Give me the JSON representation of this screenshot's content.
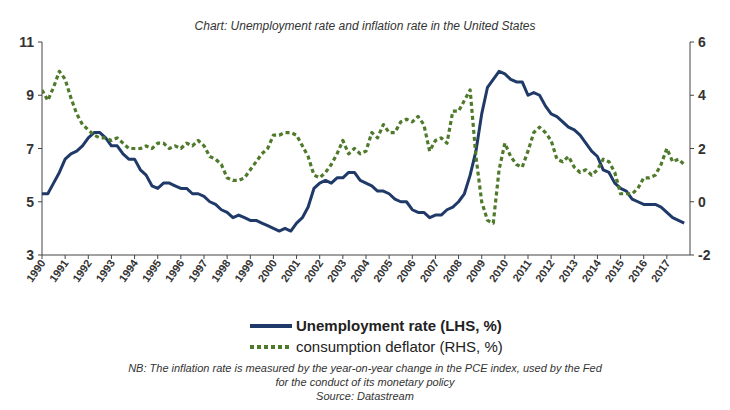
{
  "chart_data": {
    "type": "line",
    "title": "Chart: Unemployment rate and inflation rate in the United States",
    "notes": [
      "NB: The inflation rate is measured by the year-on-year change in the PCE index, used by the Fed",
      "for the conduct of its monetary policy",
      "Source: Datastream"
    ],
    "x": [
      1990,
      1990.25,
      1990.5,
      1990.75,
      1991,
      1991.25,
      1991.5,
      1991.75,
      1992,
      1992.25,
      1992.5,
      1992.75,
      1993,
      1993.25,
      1993.5,
      1993.75,
      1994,
      1994.25,
      1994.5,
      1994.75,
      1995,
      1995.25,
      1995.5,
      1995.75,
      1996,
      1996.25,
      1996.5,
      1996.75,
      1997,
      1997.25,
      1997.5,
      1997.75,
      1998,
      1998.25,
      1998.5,
      1998.75,
      1999,
      1999.25,
      1999.5,
      1999.75,
      2000,
      2000.25,
      2000.5,
      2000.75,
      2001,
      2001.25,
      2001.5,
      2001.75,
      2002,
      2002.25,
      2002.5,
      2002.75,
      2003,
      2003.25,
      2003.5,
      2003.75,
      2004,
      2004.25,
      2004.5,
      2004.75,
      2005,
      2005.25,
      2005.5,
      2005.75,
      2006,
      2006.25,
      2006.5,
      2006.75,
      2007,
      2007.25,
      2007.5,
      2007.75,
      2008,
      2008.25,
      2008.5,
      2008.75,
      2009,
      2009.25,
      2009.5,
      2009.75,
      2010,
      2010.25,
      2010.5,
      2010.75,
      2011,
      2011.25,
      2011.5,
      2011.75,
      2012,
      2012.25,
      2012.5,
      2012.75,
      2013,
      2013.25,
      2013.5,
      2013.75,
      2014,
      2014.25,
      2014.5,
      2014.75,
      2015,
      2015.25,
      2015.5,
      2015.75,
      2016,
      2016.25,
      2016.5,
      2016.75,
      2017,
      2017.25,
      2017.5,
      2017.75
    ],
    "series": [
      {
        "name": "Unemployment rate (LHS, %)",
        "color": "#1f3a68",
        "line_style": "solid",
        "axis": "y",
        "values": [
          5.3,
          5.3,
          5.7,
          6.1,
          6.6,
          6.8,
          6.9,
          7.1,
          7.4,
          7.6,
          7.6,
          7.4,
          7.1,
          7.1,
          6.8,
          6.6,
          6.6,
          6.2,
          6.0,
          5.6,
          5.5,
          5.7,
          5.7,
          5.6,
          5.5,
          5.5,
          5.3,
          5.3,
          5.2,
          5.0,
          4.9,
          4.7,
          4.6,
          4.4,
          4.5,
          4.4,
          4.3,
          4.3,
          4.2,
          4.1,
          4.0,
          3.9,
          4.0,
          3.9,
          4.2,
          4.4,
          4.8,
          5.5,
          5.7,
          5.8,
          5.7,
          5.9,
          5.9,
          6.1,
          6.1,
          5.8,
          5.7,
          5.6,
          5.4,
          5.4,
          5.3,
          5.1,
          5.0,
          5.0,
          4.7,
          4.6,
          4.6,
          4.4,
          4.5,
          4.5,
          4.7,
          4.8,
          5.0,
          5.3,
          6.0,
          6.9,
          8.3,
          9.3,
          9.6,
          9.9,
          9.8,
          9.6,
          9.5,
          9.5,
          9.0,
          9.1,
          9.0,
          8.6,
          8.3,
          8.2,
          8.0,
          7.8,
          7.7,
          7.5,
          7.2,
          6.9,
          6.7,
          6.2,
          6.1,
          5.7,
          5.5,
          5.4,
          5.1,
          5.0,
          4.9,
          4.9,
          4.9,
          4.8,
          4.6,
          4.4,
          4.3,
          4.2
        ]
      },
      {
        "name": "consumption deflator (RHS, %)",
        "color": "#4f7a2c",
        "line_style": "dotted",
        "axis": "y2",
        "values": [
          4.2,
          3.8,
          4.3,
          4.9,
          4.6,
          3.9,
          3.3,
          2.9,
          2.7,
          2.5,
          2.4,
          2.4,
          2.3,
          2.4,
          2.2,
          2.0,
          2.0,
          2.0,
          2.1,
          2.0,
          2.2,
          2.2,
          2.0,
          2.1,
          2.0,
          2.2,
          2.1,
          2.3,
          2.1,
          1.7,
          1.6,
          1.4,
          0.9,
          0.8,
          0.8,
          0.9,
          1.2,
          1.5,
          1.8,
          2.0,
          2.5,
          2.5,
          2.6,
          2.6,
          2.5,
          2.1,
          1.7,
          1.0,
          0.9,
          1.1,
          1.4,
          1.8,
          2.3,
          1.8,
          2.0,
          1.8,
          1.9,
          2.6,
          2.4,
          2.9,
          2.6,
          2.6,
          3.0,
          3.1,
          3.0,
          3.2,
          2.9,
          1.9,
          2.3,
          2.4,
          2.2,
          3.4,
          3.4,
          3.8,
          4.2,
          1.7,
          0.0,
          -0.7,
          -0.8,
          1.2,
          2.2,
          1.7,
          1.4,
          1.3,
          1.9,
          2.6,
          2.8,
          2.6,
          2.3,
          1.6,
          1.5,
          1.7,
          1.3,
          1.1,
          1.2,
          1.0,
          1.2,
          1.6,
          1.5,
          1.1,
          0.3,
          0.3,
          0.3,
          0.5,
          0.9,
          0.9,
          1.0,
          1.4,
          2.0,
          1.5,
          1.6,
          1.4
        ]
      }
    ],
    "xlim": [
      1990,
      2018
    ],
    "xticks": [
      1990,
      1991,
      1992,
      1993,
      1994,
      1995,
      1996,
      1997,
      1998,
      1999,
      2000,
      2001,
      2002,
      2003,
      2004,
      2005,
      2006,
      2007,
      2008,
      2009,
      2010,
      2011,
      2012,
      2013,
      2014,
      2015,
      2016,
      2017
    ],
    "ylim": [
      3,
      11
    ],
    "yticks": [
      3,
      5,
      7,
      9,
      11
    ],
    "y2lim": [
      -2,
      6
    ],
    "y2ticks": [
      -2,
      0,
      2,
      4,
      6
    ],
    "grid": false,
    "legend": "bottom"
  }
}
